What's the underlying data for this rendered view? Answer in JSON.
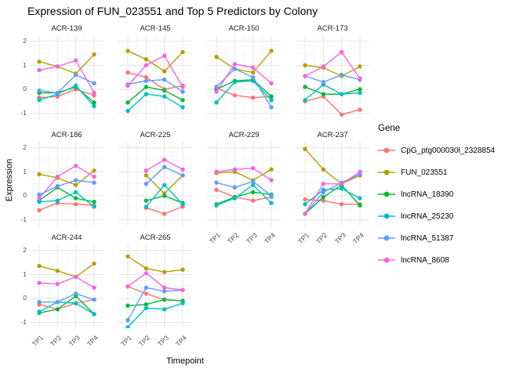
{
  "chart_data": {
    "type": "line",
    "title": "Expression of FUN_023551 and Top 5 Predictors by Colony",
    "xlabel": "Timepoint",
    "ylabel": "Expression",
    "legend_title": "Gene",
    "legend_position": "right",
    "grid": true,
    "x_ticks": [
      "TP1",
      "TP2",
      "TP3",
      "TP4"
    ],
    "y_ticks": [
      "2",
      "1",
      "0",
      "-1"
    ],
    "ylim": [
      -1.24,
      2.25
    ],
    "series": [
      {
        "name": "CpG_ptg000030l_2328854",
        "color": "#F8766D"
      },
      {
        "name": "FUN_023551",
        "color": "#B79F00"
      },
      {
        "name": "lncRNA_18390",
        "color": "#00BA38"
      },
      {
        "name": "lncRNA_25230",
        "color": "#00BFC4"
      },
      {
        "name": "lncRNA_51387",
        "color": "#619CFF"
      },
      {
        "name": "lncRNA_8608",
        "color": "#F564E2"
      }
    ],
    "facets": [
      {
        "label": "ACR-139",
        "values": {
          "CpG_ptg000030l_2328854": [
            -0.35,
            -0.3,
            0.0,
            -0.25
          ],
          "FUN_023551": [
            1.15,
            0.95,
            0.65,
            1.45
          ],
          "lncRNA_18390": [
            -0.15,
            -0.15,
            0.1,
            -0.55
          ],
          "lncRNA_25230": [
            -0.45,
            -0.2,
            0.15,
            -0.7
          ],
          "lncRNA_51387": [
            -0.05,
            -0.15,
            0.6,
            0.25
          ],
          "lncRNA_8608": [
            0.8,
            0.95,
            1.2,
            -0.15
          ]
        }
      },
      {
        "label": "ACR-145",
        "values": {
          "CpG_ptg000030l_2328854": [
            0.7,
            0.5,
            0.0,
            0.15
          ],
          "FUN_023551": [
            1.6,
            1.25,
            0.75,
            1.55
          ],
          "lncRNA_18390": [
            -0.55,
            0.1,
            -0.05,
            -0.45
          ],
          "lncRNA_25230": [
            -0.9,
            -0.2,
            -0.3,
            -0.75
          ],
          "lncRNA_51387": [
            0.2,
            0.35,
            0.4,
            -0.1
          ],
          "lncRNA_8608": [
            0.15,
            1.0,
            1.4,
            0.1
          ]
        }
      },
      {
        "label": "ACR-150",
        "values": {
          "CpG_ptg000030l_2328854": [
            0.05,
            -0.25,
            -0.35,
            -0.3
          ],
          "FUN_023551": [
            1.35,
            0.85,
            0.7,
            1.6
          ],
          "lncRNA_18390": [
            0.0,
            0.35,
            0.4,
            -0.3
          ],
          "lncRNA_25230": [
            -0.55,
            0.3,
            0.35,
            -0.45
          ],
          "lncRNA_51387": [
            0.1,
            0.85,
            0.5,
            -0.75
          ],
          "lncRNA_8608": [
            -0.1,
            1.05,
            0.9,
            0.25
          ]
        }
      },
      {
        "label": "ACR-173",
        "values": {
          "CpG_ptg000030l_2328854": [
            -0.5,
            -0.3,
            -1.05,
            -0.85
          ],
          "FUN_023551": [
            1.0,
            0.9,
            0.55,
            0.95
          ],
          "lncRNA_18390": [
            0.1,
            -0.2,
            -0.2,
            0.0
          ],
          "lncRNA_25230": [
            -0.45,
            0.2,
            -0.2,
            -0.15
          ],
          "lncRNA_51387": [
            0.55,
            0.3,
            0.6,
            0.4
          ],
          "lncRNA_8608": [
            0.55,
            0.95,
            1.55,
            0.45
          ]
        }
      },
      {
        "label": "ACR-186",
        "values": {
          "CpG_ptg000030l_2328854": [
            -0.6,
            -0.3,
            -0.35,
            -0.4
          ],
          "FUN_023551": [
            0.9,
            0.75,
            0.45,
            1.05
          ],
          "lncRNA_18390": [
            -0.2,
            0.35,
            -0.1,
            -0.25
          ],
          "lncRNA_25230": [
            -0.25,
            -0.2,
            0.15,
            -0.45
          ],
          "lncRNA_51387": [
            0.05,
            0.4,
            0.65,
            0.55
          ],
          "lncRNA_8608": [
            -0.1,
            0.8,
            1.25,
            0.8
          ]
        }
      },
      {
        "label": "ACR-225",
        "values": {
          "CpG_ptg000030l_2328854": [
            null,
            -0.5,
            -0.75,
            -0.45
          ],
          "FUN_023551": [
            null,
            0.85,
            0.1,
            0.85
          ],
          "lncRNA_18390": [
            null,
            -0.2,
            0.0,
            -0.3
          ],
          "lncRNA_25230": [
            null,
            -0.45,
            0.45,
            -0.35
          ],
          "lncRNA_51387": [
            null,
            0.5,
            1.2,
            0.85
          ],
          "lncRNA_8608": [
            null,
            1.05,
            1.5,
            1.1
          ]
        }
      },
      {
        "label": "ACR-229",
        "values": {
          "CpG_ptg000030l_2328854": [
            0.25,
            -0.05,
            -0.2,
            -0.05
          ],
          "FUN_023551": [
            0.95,
            1.0,
            0.65,
            1.1
          ],
          "lncRNA_18390": [
            -0.35,
            -0.05,
            0.15,
            0.05
          ],
          "lncRNA_25230": [
            -0.4,
            -0.1,
            0.45,
            -0.3
          ],
          "lncRNA_51387": [
            0.55,
            0.35,
            0.6,
            0.0
          ],
          "lncRNA_8608": [
            1.0,
            1.1,
            1.15,
            0.65
          ]
        }
      },
      {
        "label": "ACR-237",
        "values": {
          "CpG_ptg000030l_2328854": [
            -0.15,
            -0.2,
            -0.35,
            -0.35
          ],
          "FUN_023551": [
            1.95,
            1.1,
            0.5,
            0.85
          ],
          "lncRNA_18390": [
            -0.75,
            -0.05,
            0.45,
            -0.4
          ],
          "lncRNA_25230": [
            -0.35,
            0.25,
            0.3,
            -0.1
          ],
          "lncRNA_51387": [
            -0.75,
            0.15,
            0.55,
            0.9
          ],
          "lncRNA_8608": [
            -0.75,
            0.5,
            0.5,
            1.0
          ]
        }
      },
      {
        "label": "ACR-244",
        "values": {
          "CpG_ptg000030l_2328854": [
            -0.25,
            -0.45,
            -0.2,
            -0.05
          ],
          "FUN_023551": [
            1.35,
            1.15,
            0.9,
            1.45
          ],
          "lncRNA_18390": [
            -0.6,
            -0.45,
            0.1,
            -0.65
          ],
          "lncRNA_25230": [
            -0.55,
            -0.15,
            -0.2,
            -0.65
          ],
          "lncRNA_51387": [
            -0.15,
            -0.15,
            0.2,
            -0.05
          ],
          "lncRNA_8608": [
            0.65,
            0.6,
            0.9,
            0.45
          ]
        }
      },
      {
        "label": "ACR-265",
        "values": {
          "CpG_ptg000030l_2328854": [
            0.5,
            0.2,
            -0.05,
            -0.1
          ],
          "FUN_023551": [
            1.75,
            1.25,
            1.1,
            1.2
          ],
          "lncRNA_18390": [
            -0.3,
            -0.25,
            -0.05,
            -0.1
          ],
          "lncRNA_25230": [
            -1.2,
            -0.4,
            -0.45,
            -0.2
          ],
          "lncRNA_51387": [
            -0.9,
            0.45,
            0.3,
            0.35
          ],
          "lncRNA_8608": [
            0.5,
            1.05,
            0.45,
            0.35
          ]
        }
      }
    ],
    "style": {
      "grid_major_color": "#e5e5e5",
      "grid_minor_color": "#f2f2f2",
      "tick_label_color": "#4d4d4d"
    }
  }
}
